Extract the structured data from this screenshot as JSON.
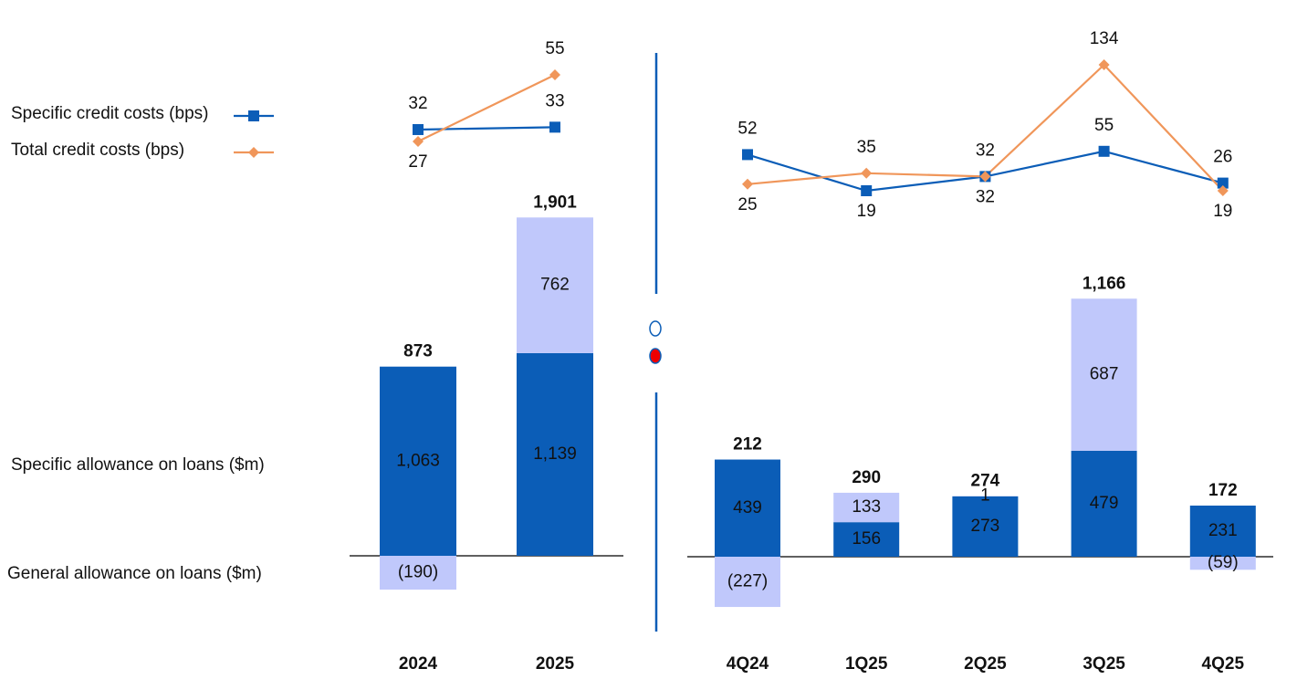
{
  "chart_data": [
    {
      "type": "bar",
      "stacked": true,
      "categories": [
        "2024",
        "2025"
      ],
      "series": [
        {
          "name": "Specific allowance on loans ($m)",
          "color": "#0b5db7",
          "values": [
            1063,
            1139
          ],
          "value_labels": [
            "1,063",
            "1,139"
          ]
        },
        {
          "name": "General allowance on loans ($m)",
          "color": "#c0c8fb",
          "values": [
            -190,
            762
          ],
          "value_labels": [
            "(190)",
            "762"
          ]
        }
      ],
      "totals": [
        873,
        1901
      ],
      "total_labels": [
        "873",
        "1,901"
      ],
      "line_series": [
        {
          "name": "Specific credit costs (bps)",
          "color": "#0b5db7",
          "marker": "square",
          "values": [
            32,
            33
          ]
        },
        {
          "name": "Total credit costs (bps)",
          "color": "#f0965a",
          "marker": "diamond",
          "values": [
            27,
            55
          ]
        }
      ]
    },
    {
      "type": "bar",
      "stacked": true,
      "categories": [
        "4Q24",
        "1Q25",
        "2Q25",
        "3Q25",
        "4Q25"
      ],
      "series": [
        {
          "color": "#0b5db7",
          "values": [
            439,
            156,
            273,
            479,
            231
          ]
        },
        {
          "color": "#c0c8fb",
          "values": [
            -227,
            133,
            1,
            687,
            -59
          ],
          "value_labels": [
            "(227)",
            "133",
            "1",
            "687",
            "(59)"
          ]
        }
      ],
      "totals": [
        212,
        290,
        274,
        1166,
        172
      ],
      "total_labels": [
        "212",
        "290",
        "274",
        "1,166",
        "172"
      ],
      "line_series": [
        {
          "color": "#0b5db7",
          "marker": "square",
          "values": [
            52,
            19,
            32,
            55,
            26
          ]
        },
        {
          "color": "#f0965a",
          "marker": "diamond",
          "values": [
            25,
            35,
            32,
            134,
            19
          ]
        }
      ]
    }
  ]
}
